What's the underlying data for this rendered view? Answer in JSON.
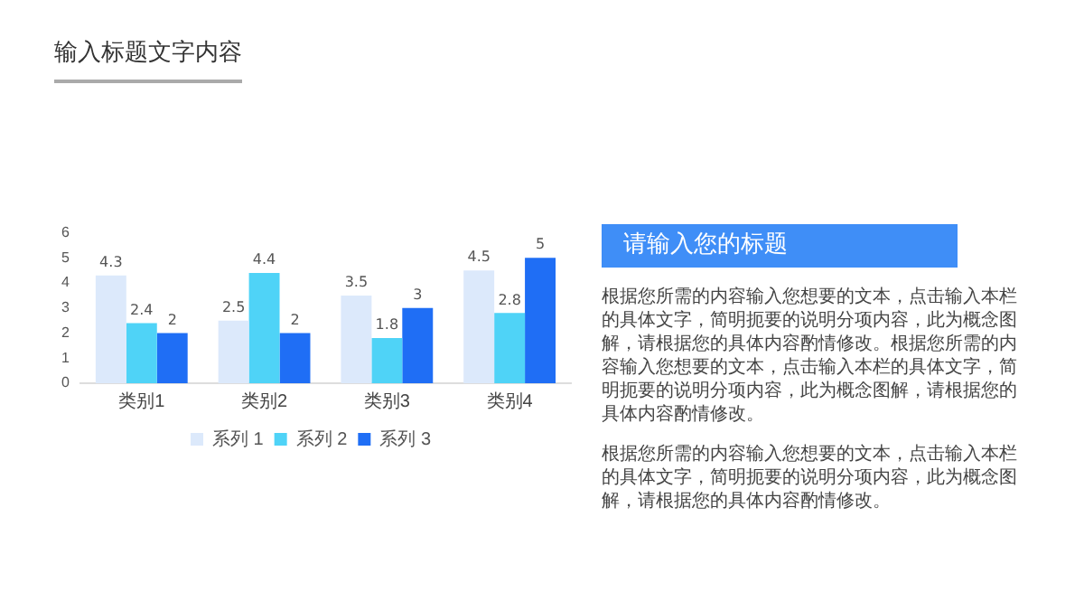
{
  "chart_data": {
    "type": "bar",
    "title": "输入标题文字内容",
    "categories": [
      "类别1",
      "类别2",
      "类别3",
      "类别4"
    ],
    "series": [
      {
        "name": "系列 1",
        "color": "#dce9fb",
        "values": [
          4.3,
          2.5,
          3.5,
          4.5
        ]
      },
      {
        "name": "系列 2",
        "color": "#4fd3f7",
        "values": [
          2.4,
          4.4,
          1.8,
          2.8
        ]
      },
      {
        "name": "系列 3",
        "color": "#1f6ef5",
        "values": [
          2,
          2,
          3,
          5
        ]
      }
    ],
    "ylim": [
      0,
      6
    ],
    "yticks": [
      0,
      1,
      2,
      3,
      4,
      5,
      6
    ],
    "grid": false,
    "legend": "bottom",
    "data_labels": true,
    "annotations": [
      "请输入您的标题",
      "根据您所需的内容输入您想要的文本，点击输入本栏的具体文字，简明扼要的说明分项内容，此为概念图解，请根据您的具体内容酌情修改。根据您所需的内容输入您想要的文本，点击输入本栏的具体文字，简明扼要的说明分项内容，此为概念图解，请根据您的具体内容酌情修改。",
      "根据您所需的内容输入您想要的文本，点击输入本栏的具体文字，简明扼要的说明分项内容，此为概念图解，请根据您的具体内容酌情修改。"
    ]
  }
}
